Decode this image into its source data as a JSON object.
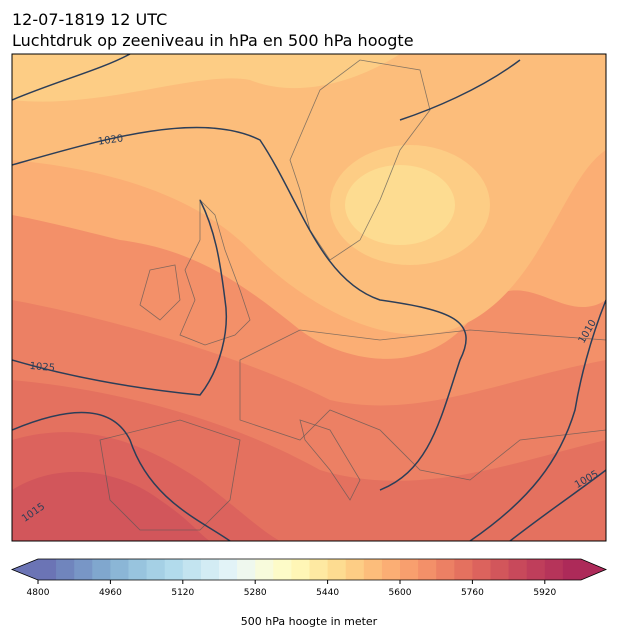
{
  "title": "12-07-1819 12 UTC",
  "subtitle": "Luchtdruk op zeeniveau in hPa en 500 hPa hoogte",
  "isobar_labels": [
    1020,
    1025,
    1015,
    1010,
    1005
  ],
  "colorbar": {
    "label": "500 hPa hoogte in meter",
    "lim": [
      4800,
      6000
    ],
    "ticks": [
      4800,
      4960,
      5120,
      5280,
      5440,
      5600,
      5760,
      5920
    ],
    "colors": [
      "#6b74b5",
      "#7085bd",
      "#7896c6",
      "#80a7ce",
      "#8bb6d6",
      "#98c4de",
      "#a5d0e5",
      "#b2dbec",
      "#c3e4f0",
      "#d3ecf4",
      "#e2f3f7",
      "#eff8ee",
      "#f8fbdc",
      "#fdfbc8",
      "#fff6b6",
      "#fee9a2",
      "#fddc91",
      "#fdcd85",
      "#fcbd7b",
      "#fbae74",
      "#f89f6e",
      "#f39069",
      "#ec8064",
      "#e4715f",
      "#dc635d",
      "#d2565b",
      "#c8495b",
      "#bf3e5b",
      "#b6345a",
      "#ad2a59"
    ]
  }
}
